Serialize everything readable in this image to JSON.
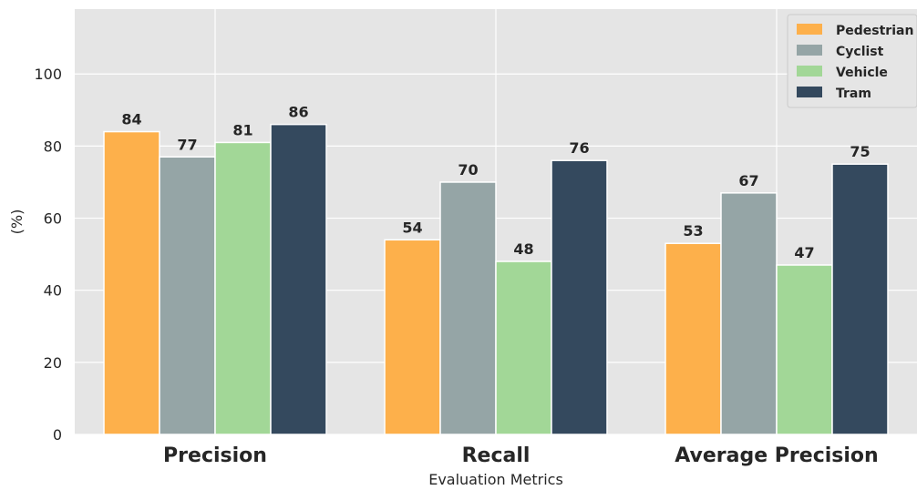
{
  "chart_data": {
    "type": "bar",
    "categories": [
      "Precision",
      "Recall",
      "Average Precision"
    ],
    "series": [
      {
        "name": "Pedestrian",
        "values": [
          84,
          54,
          53
        ],
        "color": "#fdb04b"
      },
      {
        "name": "Cyclist",
        "values": [
          77,
          70,
          67
        ],
        "color": "#95a5a6"
      },
      {
        "name": "Vehicle",
        "values": [
          81,
          48,
          47
        ],
        "color": "#a2d797"
      },
      {
        "name": "Tram",
        "values": [
          86,
          76,
          75
        ],
        "color": "#34495e"
      }
    ],
    "xlabel": "Evaluation Metrics",
    "ylabel": "(%)",
    "ylim": [
      0,
      118
    ],
    "yticks": [
      0,
      20,
      40,
      60,
      80,
      100
    ],
    "grid": true,
    "legend_position": "top-right",
    "background_color": "#e5e5e5",
    "grid_color": "#ffffff"
  }
}
